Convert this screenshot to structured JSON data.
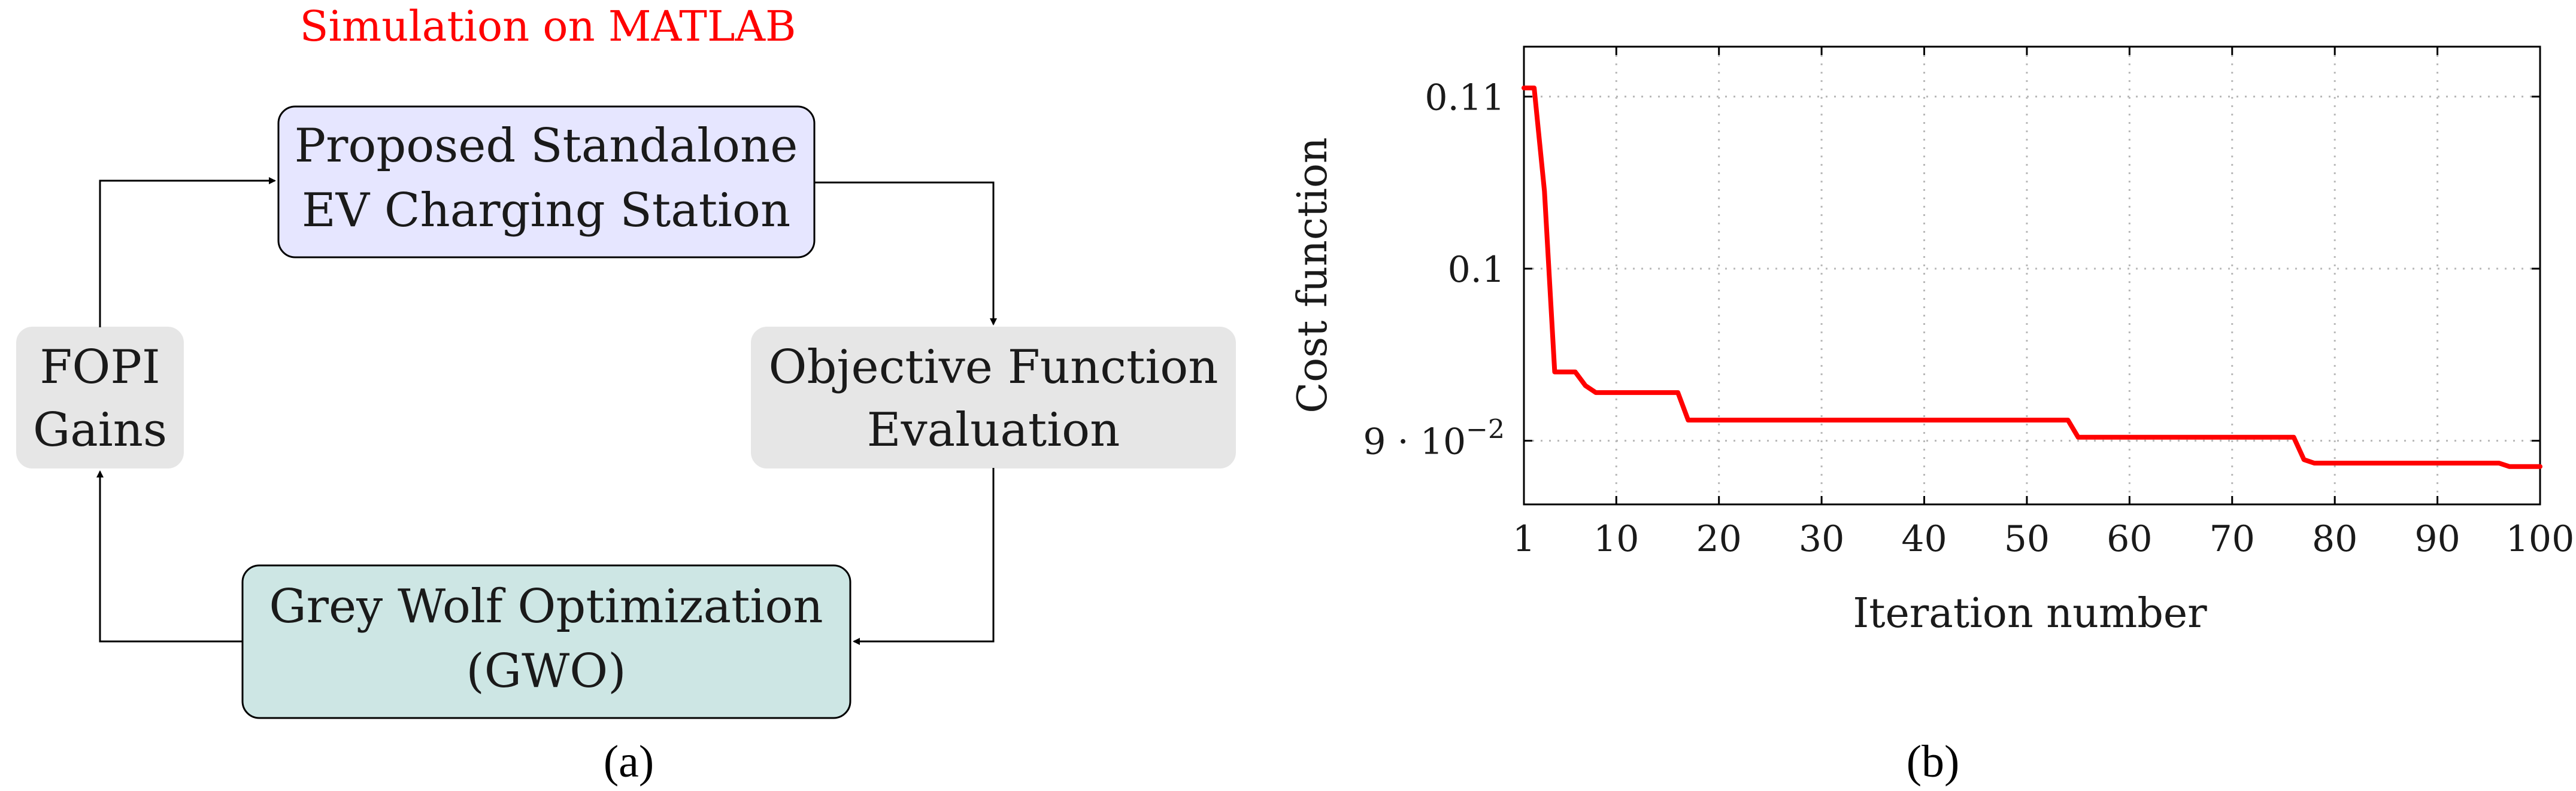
{
  "panel_a": {
    "title": "Simulation on MATLAB",
    "caption": "(a)",
    "nodes": {
      "station": {
        "line1": "Proposed Standalone",
        "line2": "EV Charging Station"
      },
      "objective": {
        "line1": "Objective Function",
        "line2": "Evaluation"
      },
      "gwo": {
        "line1": "Grey Wolf Optimization",
        "line2": "(GWO)"
      },
      "fopi": {
        "line1": "FOPI",
        "line2": "Gains"
      }
    },
    "colors": {
      "title": "#ff0000",
      "station_fill": "#e6e6ff",
      "objective_fill": "#e6e6e6",
      "gwo_fill": "#cde6e4",
      "fopi_fill": "#e6e6e6"
    }
  },
  "chart_data": {
    "type": "line",
    "caption": "(b)",
    "xlabel": "Iteration number",
    "ylabel": "Cost function",
    "xlim": [
      1,
      100
    ],
    "ylim": [
      0.0863,
      0.1129
    ],
    "x_ticks": [
      {
        "value": 1,
        "label": "1"
      },
      {
        "value": 10,
        "label": "10"
      },
      {
        "value": 20,
        "label": "20"
      },
      {
        "value": 30,
        "label": "30"
      },
      {
        "value": 40,
        "label": "40"
      },
      {
        "value": 50,
        "label": "50"
      },
      {
        "value": 60,
        "label": "60"
      },
      {
        "value": 70,
        "label": "70"
      },
      {
        "value": 80,
        "label": "80"
      },
      {
        "value": 90,
        "label": "90"
      },
      {
        "value": 100,
        "label": "100"
      }
    ],
    "y_ticks": [
      {
        "value": 0.09,
        "base": "9 · 10",
        "exp": "−2"
      },
      {
        "value": 0.1,
        "base": "0.1",
        "exp": ""
      },
      {
        "value": 0.11,
        "base": "0.11",
        "exp": ""
      }
    ],
    "grid": true,
    "series": [
      {
        "color": "#ff0000",
        "x": [
          1,
          2,
          3,
          4,
          6,
          7,
          8,
          16,
          17,
          54,
          55,
          76,
          77,
          78,
          96,
          97,
          100
        ],
        "y": [
          0.1105,
          0.1105,
          0.1045,
          0.094,
          0.094,
          0.0932,
          0.0928,
          0.0928,
          0.0912,
          0.0912,
          0.0902,
          0.0902,
          0.0889,
          0.0887,
          0.0887,
          0.0885,
          0.0885
        ]
      }
    ]
  }
}
